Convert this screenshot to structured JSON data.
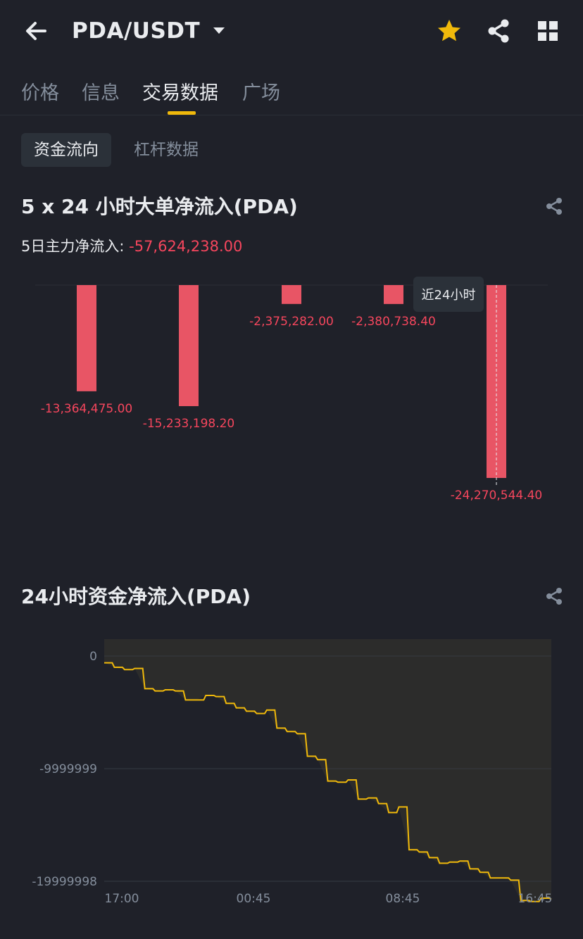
{
  "header": {
    "pair": "PDA/USDT",
    "icons": [
      "back-arrow-icon",
      "caret-down-icon",
      "star-icon",
      "share-icon",
      "grid-icon"
    ],
    "accent_color": "#f0b90b"
  },
  "tabs": [
    {
      "label": "价格"
    },
    {
      "label": "信息"
    },
    {
      "label": "交易数据"
    },
    {
      "label": "广场"
    }
  ],
  "subtabs": [
    {
      "label": "资金流向"
    },
    {
      "label": "杠杆数据"
    }
  ],
  "section1": {
    "title": "5 x 24 小时大单净流入(PDA)",
    "summary_label": "5日主力净流入:",
    "summary_value": "-57,624,238.00",
    "tooltip": "近24小时"
  },
  "section2": {
    "title": "24小时资金净流入(PDA)"
  },
  "chart_data": [
    {
      "type": "bar",
      "title": "5 x 24 小时大单净流入(PDA)",
      "categories": [
        "",
        "",
        "",
        "",
        ""
      ],
      "values": [
        -13364475.0,
        -15233198.2,
        -2375282.0,
        -2380738.4,
        -24270544.4
      ],
      "labels": [
        "-13,364,475.00",
        "-15,233,198.20",
        "-2,375,282.00",
        "-2,380,738.40",
        "-24,270,544.40"
      ],
      "bar_color": "#e85565",
      "ylim": [
        -24270544.4,
        0
      ],
      "highlighted_index": 4
    },
    {
      "type": "area",
      "title": "24小时资金净流入(PDA)",
      "x_ticks": [
        "17:00",
        "00:45",
        "08:45",
        "16:45"
      ],
      "y_ticks": [
        "0",
        "-9999999",
        "-19999998"
      ],
      "y_tick_values": [
        0,
        -9999999,
        -19999998
      ],
      "ylim": [
        -20500000,
        1500000
      ],
      "line_color": "#f0b90b",
      "grid": true,
      "series": [
        {
          "values": [
            -600000,
            -1000000,
            -1200000,
            -1100000,
            -2900000,
            -3100000,
            -3000000,
            -3100000,
            -3900000,
            -3900000,
            -3500000,
            -3600000,
            -4200000,
            -4600000,
            -4900000,
            -5100000,
            -4800000,
            -6400000,
            -6700000,
            -6900000,
            -8900000,
            -9200000,
            -11100000,
            -11200000,
            -11000000,
            -12700000,
            -12600000,
            -13100000,
            -13900000,
            -13400000,
            -17200000,
            -17400000,
            -17900000,
            -18400000,
            -18300000,
            -18200000,
            -18900000,
            -19200000,
            -19700000,
            -19700000,
            -19900000,
            -21700000,
            -21800000,
            -21500000,
            -21600000
          ]
        }
      ]
    }
  ]
}
